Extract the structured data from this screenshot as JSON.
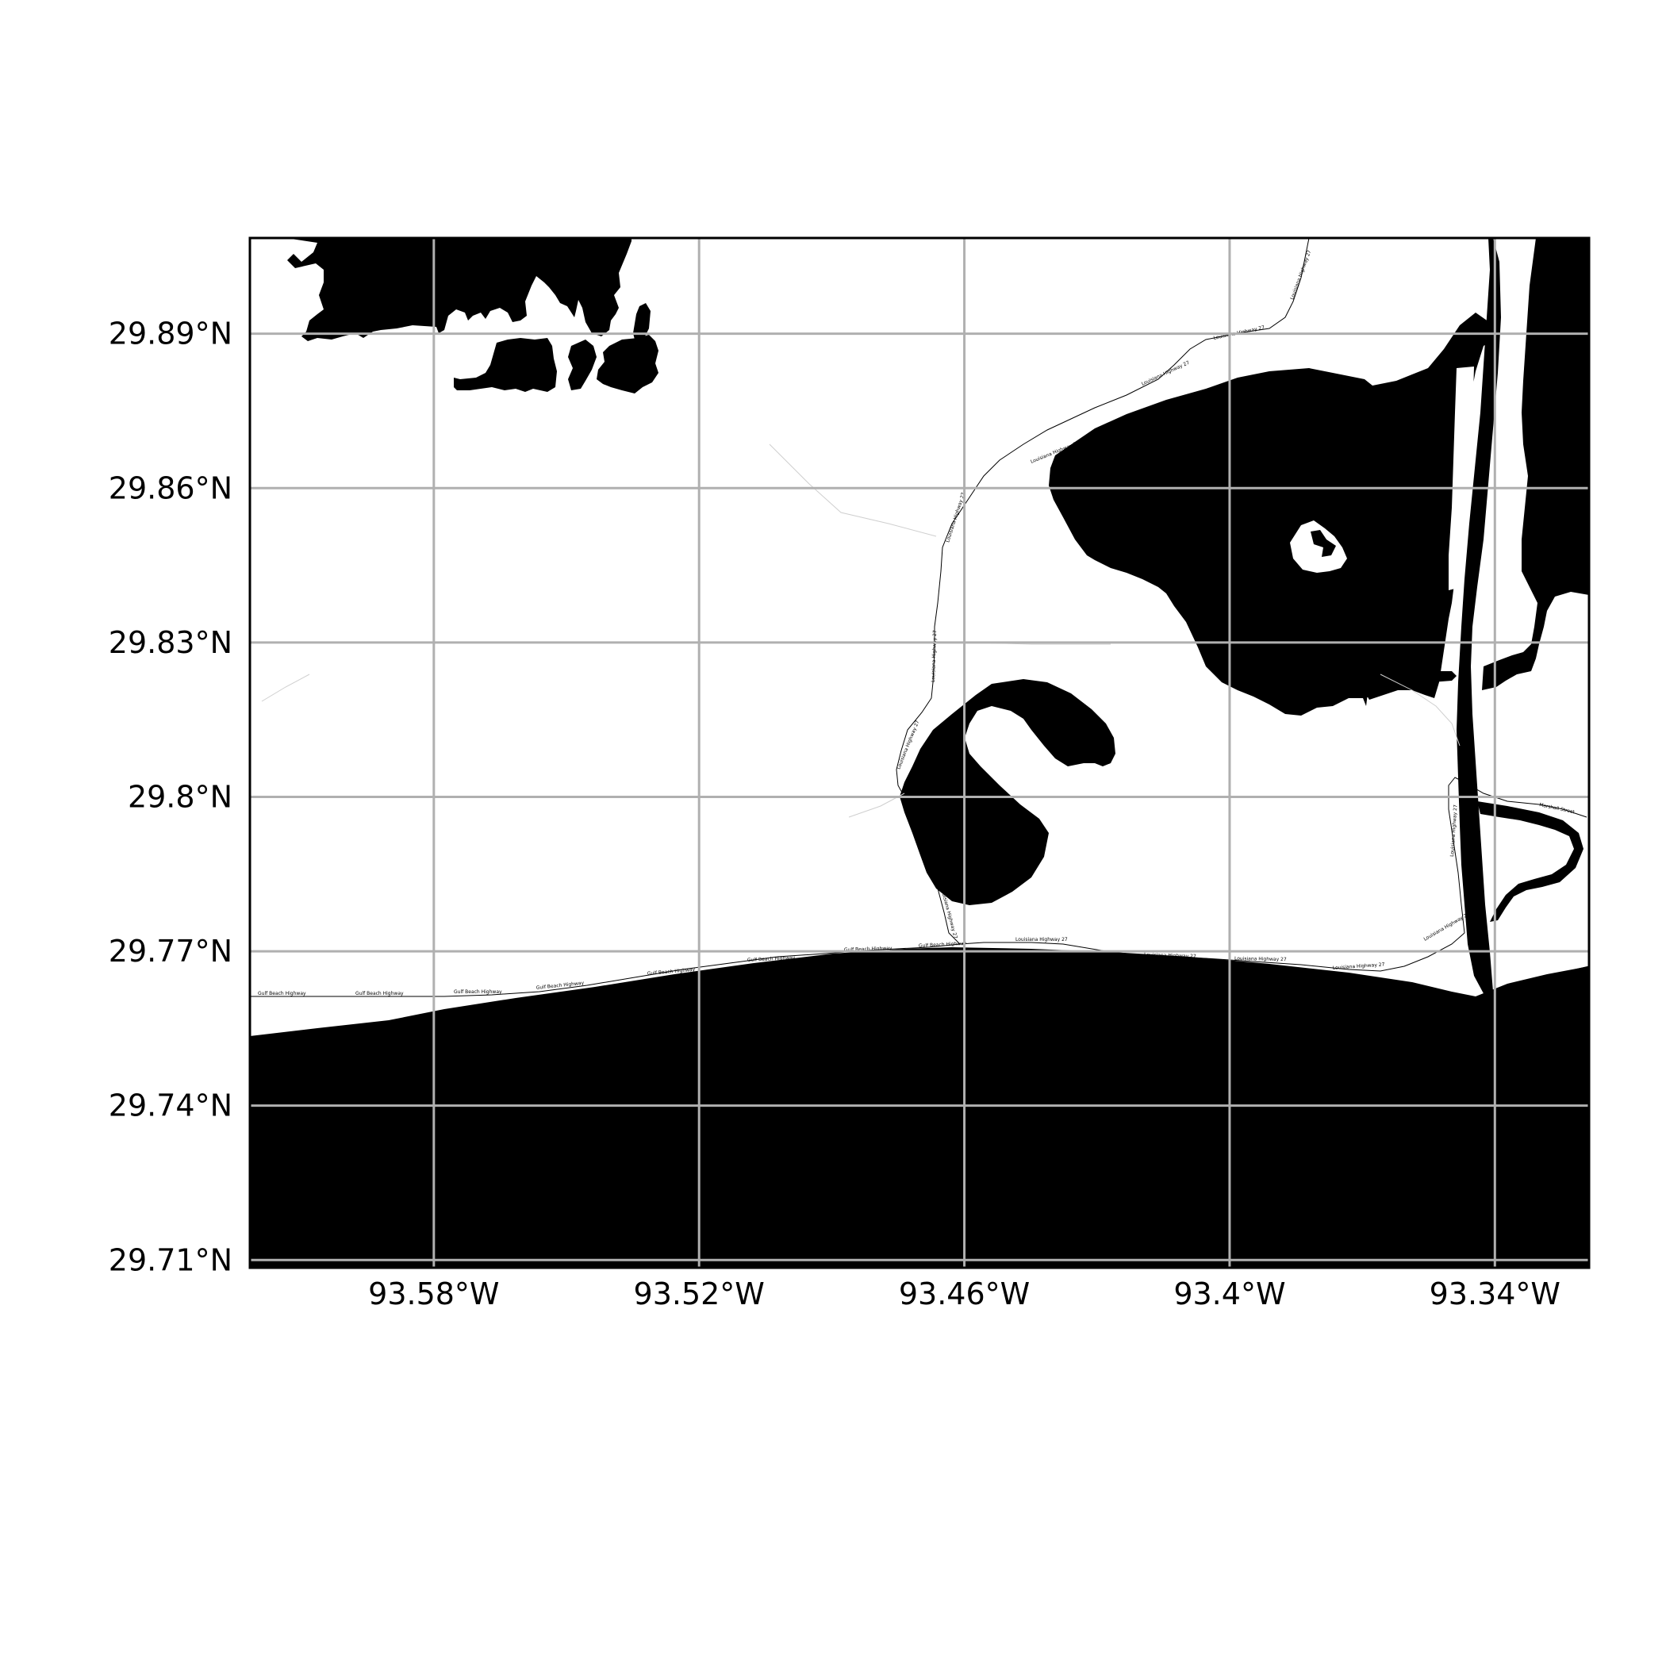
{
  "map": {
    "lon_range": [
      -93.6216,
      -93.3187
    ],
    "lat_range": [
      29.7085,
      29.9086
    ],
    "lon_ticks": [
      {
        "value": -93.58,
        "label": "93.58°W"
      },
      {
        "value": -93.52,
        "label": "93.52°W"
      },
      {
        "value": -93.46,
        "label": "93.46°W"
      },
      {
        "value": -93.4,
        "label": "93.4°W"
      },
      {
        "value": -93.34,
        "label": "93.34°W"
      }
    ],
    "lat_ticks": [
      {
        "value": 29.71,
        "label": "29.71°N"
      },
      {
        "value": 29.74,
        "label": "29.74°N"
      },
      {
        "value": 29.77,
        "label": "29.77°N"
      },
      {
        "value": 29.8,
        "label": "29.8°N"
      },
      {
        "value": 29.83,
        "label": "29.83°N"
      },
      {
        "value": 29.86,
        "label": "29.86°N"
      },
      {
        "value": 29.89,
        "label": "29.89°N"
      }
    ],
    "grid": true,
    "water_color": "#000000",
    "land_color": "#ffffff",
    "grid_color": "#b0b0b0",
    "road_labels": [
      "Gulf Beach Highway",
      "Gulf Beach Highway",
      "Gulf Beach Highway",
      "Gulf Beach Highway",
      "Gulf Beach Highway",
      "Gulf Beach Highway",
      "Gulf Beach Highway",
      "Gulf Beach Highway",
      "Louisiana Highway 27",
      "Louisiana Highway 27",
      "Louisiana Highway 27",
      "Louisiana Highway 27",
      "Louisiana Highway 27",
      "Louisiana Highway 27",
      "Louisiana Highway 27",
      "Louisiana Highway 27",
      "Louisiana Highway 27",
      "Louisiana Highway 27",
      "Louisiana Highway 27",
      "Louisiana Highway 27",
      "Louisiana Highway 27",
      "Louisiana Highway 27",
      "Marshall Street"
    ]
  }
}
